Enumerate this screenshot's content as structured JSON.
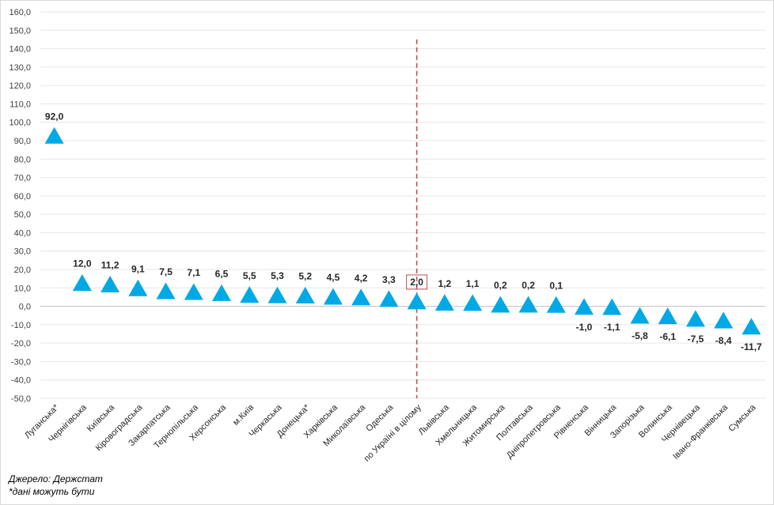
{
  "chart_data": {
    "type": "scatter",
    "marker": "triangle",
    "marker_color": "#00a9e6",
    "reference_line_color": "#c0504d",
    "highlight_category": "по Україні в цілому",
    "categories": [
      "Луганська*",
      "Чернігівська",
      "Київська",
      "Кіровоградська",
      "Закарпатська",
      "Тернопільська",
      "Херсонська",
      "м.Київ",
      "Черкаська",
      "Донецька*",
      "Харківська",
      "Миколаївська",
      "Одеська",
      "по Україні в цілому",
      "Львівська",
      "Хмельницька",
      "Житомирська",
      "Полтавська",
      "Дніпропетровська",
      "Рівненська",
      "Вінницька",
      "Запорізька",
      "Волинська",
      "Чернівецька",
      "Івано-Франківська",
      "Сумська"
    ],
    "values": [
      92.0,
      12.0,
      11.2,
      9.1,
      7.5,
      7.1,
      6.5,
      5.5,
      5.3,
      5.2,
      4.5,
      4.2,
      3.3,
      2.0,
      1.2,
      1.1,
      0.2,
      0.2,
      0.1,
      -1.0,
      -1.1,
      -5.8,
      -6.1,
      -7.5,
      -8.4,
      -11.7
    ],
    "labels": [
      "92,0",
      "12,0",
      "11,2",
      "9,1",
      "7,5",
      "7,1",
      "6,5",
      "5,5",
      "5,3",
      "5,2",
      "4,5",
      "4,2",
      "3,3",
      "2,0",
      "1,2",
      "1,1",
      "0,2",
      "0,2",
      "0,1",
      "-1,0",
      "-1,1",
      "-5,8",
      "-6,1",
      "-7,5",
      "-8,4",
      "-11,7"
    ],
    "yticks": [
      "160,0",
      "150,0",
      "140,0",
      "130,0",
      "120,0",
      "110,0",
      "100,0",
      "90,0",
      "80,0",
      "70,0",
      "60,0",
      "50,0",
      "40,0",
      "30,0",
      "20,0",
      "10,0",
      "0,0",
      "-10,0",
      "-20,0",
      "-30,0",
      "-40,0",
      "-50,0"
    ],
    "ylim": [
      -50,
      160
    ],
    "ystep": 10,
    "grid": true,
    "title": "",
    "xlabel": "",
    "ylabel": ""
  },
  "notes": {
    "source": "Джерело: Держстат",
    "footnote": "*дані можуть бути"
  }
}
